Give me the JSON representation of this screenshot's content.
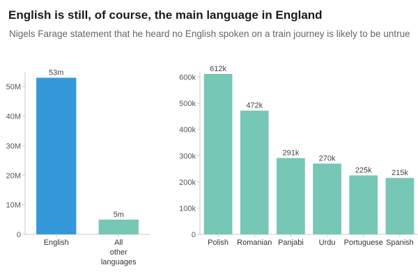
{
  "header": {
    "title": "English is still, of course, the main language in England",
    "subtitle": "Nigels Farage statement that he heard no English spoken on a train journey is likely to be untrue"
  },
  "chart_data": [
    {
      "type": "bar",
      "categories": [
        "English",
        "All other languages"
      ],
      "category_lines": [
        [
          "English"
        ],
        [
          "All",
          "other",
          "languages"
        ]
      ],
      "values": [
        53,
        5
      ],
      "data_labels": [
        "53m",
        "5m"
      ],
      "unit": "millions of speakers",
      "ylim": [
        0,
        55
      ],
      "yticks": [
        0,
        10,
        20,
        30,
        40,
        50
      ],
      "ytick_labels": [
        "0",
        "10M",
        "20M",
        "30M",
        "40M",
        "50M"
      ],
      "colors": [
        "#3498db",
        "#76c7b5"
      ],
      "grid": false,
      "title": "",
      "xlabel": "",
      "ylabel": ""
    },
    {
      "type": "bar",
      "categories": [
        "Polish",
        "Romanian",
        "Panjabi",
        "Urdu",
        "Portuguese",
        "Spanish"
      ],
      "values": [
        612,
        472,
        291,
        270,
        225,
        215
      ],
      "data_labels": [
        "612k",
        "472k",
        "291k",
        "270k",
        "225k",
        "215k"
      ],
      "unit": "thousands of speakers",
      "ylim": [
        0,
        620
      ],
      "yticks": [
        0,
        100,
        200,
        300,
        400,
        500,
        600
      ],
      "ytick_labels": [
        "0",
        "100k",
        "200k",
        "300k",
        "400k",
        "500k",
        "600k"
      ],
      "colors": [
        "#76c7b5"
      ],
      "grid": false,
      "title": "",
      "xlabel": "",
      "ylabel": ""
    }
  ]
}
